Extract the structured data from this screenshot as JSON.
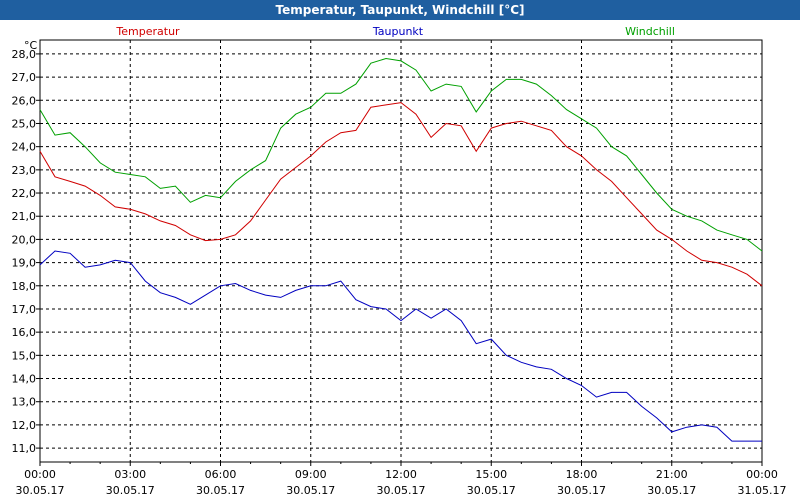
{
  "window": {
    "title": "Temperatur, Taupunkt, Windchill [°C]"
  },
  "chart_data": {
    "type": "line",
    "title": "Temperatur, Taupunkt, Windchill [°C]",
    "ylabel": "°C",
    "ylim": [
      10.4,
      28.6
    ],
    "xlim": [
      0,
      24
    ],
    "yticks": [
      "11,0",
      "12,0",
      "13,0",
      "14,0",
      "15,0",
      "16,0",
      "17,0",
      "18,0",
      "19,0",
      "20,0",
      "21,0",
      "22,0",
      "23,0",
      "24,0",
      "25,0",
      "26,0",
      "27,0",
      "28,0"
    ],
    "xticks": [
      {
        "time": "00:00",
        "date": "30.05.17"
      },
      {
        "time": "03:00",
        "date": "30.05.17"
      },
      {
        "time": "06:00",
        "date": "30.05.17"
      },
      {
        "time": "09:00",
        "date": "30.05.17"
      },
      {
        "time": "12:00",
        "date": "30.05.17"
      },
      {
        "time": "15:00",
        "date": "30.05.17"
      },
      {
        "time": "18:00",
        "date": "30.05.17"
      },
      {
        "time": "21:00",
        "date": "30.05.17"
      },
      {
        "time": "00:00",
        "date": "31.05.17"
      }
    ],
    "grid": true,
    "legend_position": "top",
    "series": [
      {
        "name": "Temperatur",
        "color": "#d00000",
        "x": [
          0,
          0.5,
          1,
          1.5,
          2,
          2.5,
          3,
          3.5,
          4,
          4.5,
          5,
          5.5,
          6,
          6.5,
          7,
          7.5,
          8,
          8.5,
          9,
          9.5,
          10,
          10.5,
          11,
          11.5,
          12,
          12.5,
          13,
          13.5,
          14,
          14.5,
          15,
          15.5,
          16,
          16.5,
          17,
          17.5,
          18,
          18.5,
          19,
          19.5,
          20,
          20.5,
          21,
          21.5,
          22,
          22.5,
          23,
          23.5,
          24
        ],
        "y": [
          23.8,
          22.7,
          22.5,
          22.3,
          21.9,
          21.4,
          21.3,
          21.1,
          20.8,
          20.6,
          20.2,
          19.95,
          20.0,
          20.2,
          20.8,
          21.7,
          22.6,
          23.1,
          23.6,
          24.2,
          24.6,
          24.7,
          25.7,
          25.8,
          25.9,
          25.4,
          24.4,
          25.0,
          24.9,
          23.8,
          24.8,
          25.0,
          25.1,
          24.9,
          24.7,
          24.0,
          23.6,
          23.0,
          22.5,
          21.8,
          21.1,
          20.4,
          20.0,
          19.5,
          19.1,
          19.0,
          18.8,
          18.5,
          18.0
        ]
      },
      {
        "name": "Taupunkt",
        "color": "#0000c0",
        "x": [
          0,
          0.5,
          1,
          1.5,
          2,
          2.5,
          3,
          3.5,
          4,
          4.5,
          5,
          5.5,
          6,
          6.5,
          7,
          7.5,
          8,
          8.5,
          9,
          9.5,
          10,
          10.5,
          11,
          11.5,
          12,
          12.5,
          13,
          13.5,
          14,
          14.5,
          15,
          15.5,
          16,
          16.5,
          17,
          17.5,
          18,
          18.5,
          19,
          19.5,
          20,
          20.5,
          21,
          21.5,
          22,
          22.5,
          23,
          23.5,
          24
        ],
        "y": [
          18.9,
          19.5,
          19.4,
          18.8,
          18.9,
          19.1,
          19.0,
          18.2,
          17.7,
          17.5,
          17.2,
          17.6,
          18.0,
          18.1,
          17.8,
          17.6,
          17.5,
          17.8,
          18.0,
          18.0,
          18.2,
          17.4,
          17.1,
          17.0,
          16.5,
          17.0,
          16.6,
          17.0,
          16.5,
          15.5,
          15.7,
          15.0,
          14.7,
          14.5,
          14.4,
          14.0,
          13.7,
          13.2,
          13.4,
          13.4,
          12.8,
          12.3,
          11.7,
          11.9,
          12.0,
          11.9,
          11.3,
          11.3,
          11.3
        ]
      },
      {
        "name": "Windchill",
        "color": "#00a000",
        "x": [
          0,
          0.5,
          1,
          1.5,
          2,
          2.5,
          3,
          3.5,
          4,
          4.5,
          5,
          5.5,
          6,
          6.5,
          7,
          7.5,
          8,
          8.5,
          9,
          9.5,
          10,
          10.5,
          11,
          11.5,
          12,
          12.5,
          13,
          13.5,
          14,
          14.5,
          15,
          15.5,
          16,
          16.5,
          17,
          17.5,
          18,
          18.5,
          19,
          19.5,
          20,
          20.5,
          21,
          21.5,
          22,
          22.5,
          23,
          23.5,
          24
        ],
        "y": [
          25.6,
          24.5,
          24.6,
          24.0,
          23.3,
          22.9,
          22.8,
          22.7,
          22.2,
          22.3,
          21.6,
          21.9,
          21.8,
          22.5,
          23.0,
          23.4,
          24.8,
          25.4,
          25.7,
          26.3,
          26.3,
          26.7,
          27.6,
          27.8,
          27.7,
          27.3,
          26.4,
          26.7,
          26.6,
          25.5,
          26.4,
          26.9,
          26.9,
          26.7,
          26.2,
          25.6,
          25.2,
          24.8,
          24.0,
          23.6,
          22.8,
          22.0,
          21.3,
          21.0,
          20.8,
          20.4,
          20.2,
          20.0,
          19.5
        ]
      }
    ]
  }
}
